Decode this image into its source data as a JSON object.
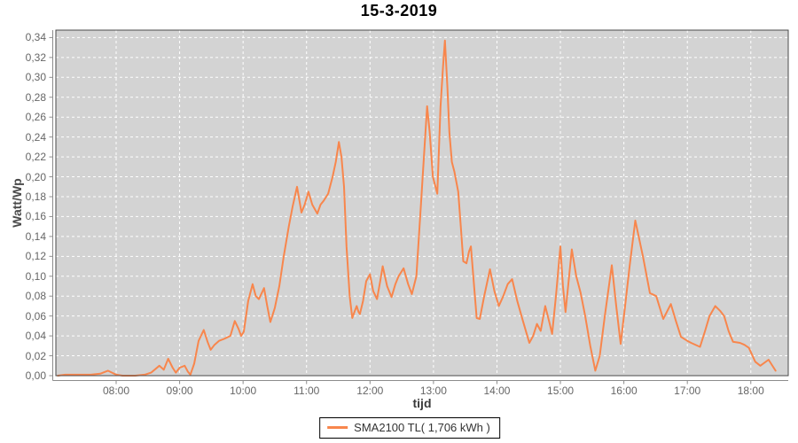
{
  "colors": {
    "series": "#f8864c",
    "plot_bg": "#d3d3d3",
    "plot_border": "#4b4b4b",
    "grid": "#ffffff",
    "axis_line": "#8c8c8c",
    "tick_text": "#666666"
  },
  "legend": {
    "series_label": "SMA2100 TL( 1,706 kWh )"
  },
  "chart_data": {
    "type": "line",
    "title": "15-3-2019",
    "xlabel": "tijd",
    "ylabel": "Watt/Wp",
    "xlim": [
      7.05,
      18.59
    ],
    "ylim": [
      0,
      0.3475
    ],
    "grid": true,
    "legend_position": "bottom",
    "x_ticks": {
      "values": [
        8,
        9,
        10,
        11,
        12,
        13,
        14,
        15,
        16,
        17,
        18
      ],
      "labels": [
        "08:00",
        "09:00",
        "10:00",
        "11:00",
        "12:00",
        "13:00",
        "14:00",
        "15:00",
        "16:00",
        "17:00",
        "18:00"
      ]
    },
    "y_ticks": {
      "values": [
        0.0,
        0.02,
        0.04,
        0.06,
        0.08,
        0.1,
        0.12,
        0.14,
        0.16,
        0.18,
        0.2,
        0.22,
        0.24,
        0.26,
        0.28,
        0.3,
        0.32,
        0.34
      ],
      "labels": [
        "0,00",
        "0,02",
        "0,04",
        "0,06",
        "0,08",
        "0,10",
        "0,12",
        "0,14",
        "0,16",
        "0,18",
        "0,20",
        "0,22",
        "0,24",
        "0,26",
        "0,28",
        "0,30",
        "0,32",
        "0,34"
      ]
    },
    "series": [
      {
        "name": "SMA2100 TL( 1,706 kWh )",
        "color": "#f8864c",
        "points": [
          [
            7.08,
            0.0
          ],
          [
            7.2,
            0.001
          ],
          [
            7.4,
            0.001
          ],
          [
            7.6,
            0.001
          ],
          [
            7.75,
            0.002
          ],
          [
            7.87,
            0.005
          ],
          [
            8.0,
            0.001
          ],
          [
            8.1,
            0.0
          ],
          [
            8.3,
            0.0
          ],
          [
            8.45,
            0.001
          ],
          [
            8.55,
            0.003
          ],
          [
            8.68,
            0.01
          ],
          [
            8.75,
            0.006
          ],
          [
            8.82,
            0.017
          ],
          [
            8.89,
            0.008
          ],
          [
            8.94,
            0.003
          ],
          [
            9.0,
            0.008
          ],
          [
            9.08,
            0.01
          ],
          [
            9.13,
            0.004
          ],
          [
            9.17,
            0.001
          ],
          [
            9.23,
            0.012
          ],
          [
            9.3,
            0.035
          ],
          [
            9.38,
            0.046
          ],
          [
            9.44,
            0.034
          ],
          [
            9.49,
            0.026
          ],
          [
            9.55,
            0.031
          ],
          [
            9.62,
            0.035
          ],
          [
            9.7,
            0.037
          ],
          [
            9.8,
            0.04
          ],
          [
            9.87,
            0.055
          ],
          [
            9.93,
            0.047
          ],
          [
            9.97,
            0.04
          ],
          [
            10.01,
            0.044
          ],
          [
            10.08,
            0.075
          ],
          [
            10.15,
            0.092
          ],
          [
            10.2,
            0.08
          ],
          [
            10.25,
            0.077
          ],
          [
            10.33,
            0.088
          ],
          [
            10.38,
            0.07
          ],
          [
            10.43,
            0.054
          ],
          [
            10.5,
            0.068
          ],
          [
            10.57,
            0.09
          ],
          [
            10.64,
            0.12
          ],
          [
            10.72,
            0.15
          ],
          [
            10.78,
            0.17
          ],
          [
            10.85,
            0.19
          ],
          [
            10.89,
            0.175
          ],
          [
            10.92,
            0.164
          ],
          [
            10.97,
            0.172
          ],
          [
            11.03,
            0.185
          ],
          [
            11.09,
            0.172
          ],
          [
            11.17,
            0.163
          ],
          [
            11.22,
            0.172
          ],
          [
            11.27,
            0.176
          ],
          [
            11.34,
            0.183
          ],
          [
            11.41,
            0.2
          ],
          [
            11.46,
            0.215
          ],
          [
            11.51,
            0.235
          ],
          [
            11.55,
            0.22
          ],
          [
            11.59,
            0.19
          ],
          [
            11.63,
            0.13
          ],
          [
            11.68,
            0.08
          ],
          [
            11.72,
            0.058
          ],
          [
            11.76,
            0.065
          ],
          [
            11.79,
            0.07
          ],
          [
            11.82,
            0.064
          ],
          [
            11.84,
            0.062
          ],
          [
            11.89,
            0.075
          ],
          [
            11.94,
            0.095
          ],
          [
            12.0,
            0.102
          ],
          [
            12.05,
            0.085
          ],
          [
            12.11,
            0.077
          ],
          [
            12.16,
            0.095
          ],
          [
            12.2,
            0.11
          ],
          [
            12.27,
            0.09
          ],
          [
            12.34,
            0.079
          ],
          [
            12.4,
            0.092
          ],
          [
            12.45,
            0.1
          ],
          [
            12.53,
            0.108
          ],
          [
            12.6,
            0.092
          ],
          [
            12.66,
            0.082
          ],
          [
            12.73,
            0.1
          ],
          [
            12.8,
            0.17
          ],
          [
            12.85,
            0.22
          ],
          [
            12.9,
            0.271
          ],
          [
            12.94,
            0.245
          ],
          [
            12.99,
            0.2
          ],
          [
            13.06,
            0.183
          ],
          [
            13.11,
            0.27
          ],
          [
            13.15,
            0.31
          ],
          [
            13.18,
            0.337
          ],
          [
            13.22,
            0.29
          ],
          [
            13.25,
            0.245
          ],
          [
            13.29,
            0.215
          ],
          [
            13.33,
            0.205
          ],
          [
            13.39,
            0.185
          ],
          [
            13.43,
            0.15
          ],
          [
            13.47,
            0.115
          ],
          [
            13.52,
            0.113
          ],
          [
            13.56,
            0.125
          ],
          [
            13.59,
            0.13
          ],
          [
            13.64,
            0.09
          ],
          [
            13.68,
            0.058
          ],
          [
            13.73,
            0.057
          ],
          [
            13.8,
            0.08
          ],
          [
            13.89,
            0.107
          ],
          [
            13.96,
            0.085
          ],
          [
            14.03,
            0.07
          ],
          [
            14.1,
            0.08
          ],
          [
            14.17,
            0.092
          ],
          [
            14.24,
            0.097
          ],
          [
            14.32,
            0.075
          ],
          [
            14.41,
            0.055
          ],
          [
            14.51,
            0.033
          ],
          [
            14.57,
            0.04
          ],
          [
            14.63,
            0.052
          ],
          [
            14.69,
            0.045
          ],
          [
            14.76,
            0.07
          ],
          [
            14.82,
            0.055
          ],
          [
            14.87,
            0.042
          ],
          [
            14.93,
            0.08
          ],
          [
            15.0,
            0.13
          ],
          [
            15.04,
            0.09
          ],
          [
            15.08,
            0.064
          ],
          [
            15.13,
            0.095
          ],
          [
            15.18,
            0.127
          ],
          [
            15.25,
            0.1
          ],
          [
            15.32,
            0.083
          ],
          [
            15.39,
            0.06
          ],
          [
            15.47,
            0.03
          ],
          [
            15.55,
            0.005
          ],
          [
            15.62,
            0.02
          ],
          [
            15.7,
            0.06
          ],
          [
            15.81,
            0.111
          ],
          [
            15.88,
            0.07
          ],
          [
            15.95,
            0.032
          ],
          [
            16.02,
            0.07
          ],
          [
            16.09,
            0.11
          ],
          [
            16.18,
            0.156
          ],
          [
            16.25,
            0.135
          ],
          [
            16.3,
            0.12
          ],
          [
            16.41,
            0.083
          ],
          [
            16.51,
            0.08
          ],
          [
            16.62,
            0.057
          ],
          [
            16.74,
            0.072
          ],
          [
            16.82,
            0.055
          ],
          [
            16.9,
            0.039
          ],
          [
            17.0,
            0.035
          ],
          [
            17.06,
            0.033
          ],
          [
            17.2,
            0.029
          ],
          [
            17.28,
            0.045
          ],
          [
            17.35,
            0.06
          ],
          [
            17.44,
            0.07
          ],
          [
            17.52,
            0.065
          ],
          [
            17.58,
            0.06
          ],
          [
            17.65,
            0.045
          ],
          [
            17.72,
            0.034
          ],
          [
            17.83,
            0.033
          ],
          [
            17.9,
            0.031
          ],
          [
            17.97,
            0.028
          ],
          [
            18.07,
            0.014
          ],
          [
            18.15,
            0.01
          ],
          [
            18.28,
            0.016
          ],
          [
            18.39,
            0.005
          ]
        ]
      }
    ]
  }
}
